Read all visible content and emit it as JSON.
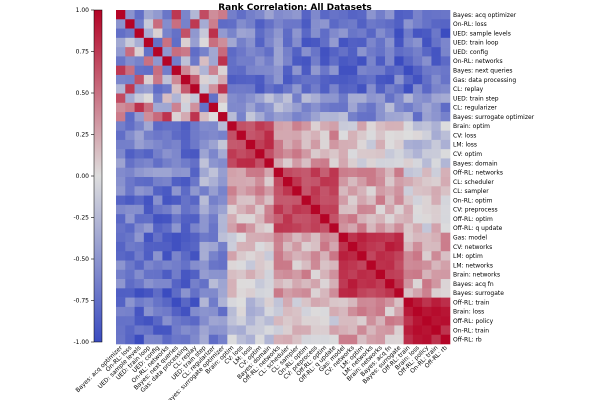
{
  "chart_data": {
    "type": "heatmap",
    "title": "Rank Correlation: All Datasets",
    "labels": [
      "Bayes: acq optimizer",
      "On-RL: loss",
      "UED: sample levels",
      "UED: train loop",
      "UED: config",
      "On-RL: networks",
      "Bayes: next queries",
      "Gas: data processing",
      "CL: replay",
      "UED: train step",
      "CL: regularizer",
      "Bayes: surrogate optimizer",
      "Brain: optim",
      "CV: loss",
      "LM: loss",
      "CV: optim",
      "Bayes: domain",
      "Off-RL: networks",
      "CL: scheduler",
      "CL: sampler",
      "On-RL: optim",
      "CV: preprocess",
      "Off-RL: optim",
      "Off-RL: q update",
      "Gas: model",
      "CV: networks",
      "LM: optim",
      "LM: networks",
      "Brain: networks",
      "Bayes: acq fn",
      "Bayes: surrogate",
      "Off-RL: train",
      "Brain: loss",
      "Off-RL: policy",
      "On-RL: train",
      "Off-RL: rb"
    ],
    "groups": [
      {
        "start": 0,
        "end": 12,
        "level": -0.7
      },
      {
        "start": 12,
        "end": 17,
        "level": 0.72
      },
      {
        "start": 17,
        "end": 24,
        "level": 0.7
      },
      {
        "start": 24,
        "end": 31,
        "level": 0.78
      },
      {
        "start": 31,
        "end": 36,
        "level": 0.85
      }
    ],
    "colorbar": {
      "min": -1.0,
      "max": 1.0,
      "ticks": [
        "1.00",
        "0.75",
        "0.50",
        "0.25",
        "0.00",
        "-0.25",
        "-0.50",
        "-0.75",
        "-1.00"
      ]
    },
    "colormap": "coolwarm",
    "colors": {
      "low": "#3b4cc0",
      "mid": "#dddddd",
      "high": "#b40426"
    }
  }
}
